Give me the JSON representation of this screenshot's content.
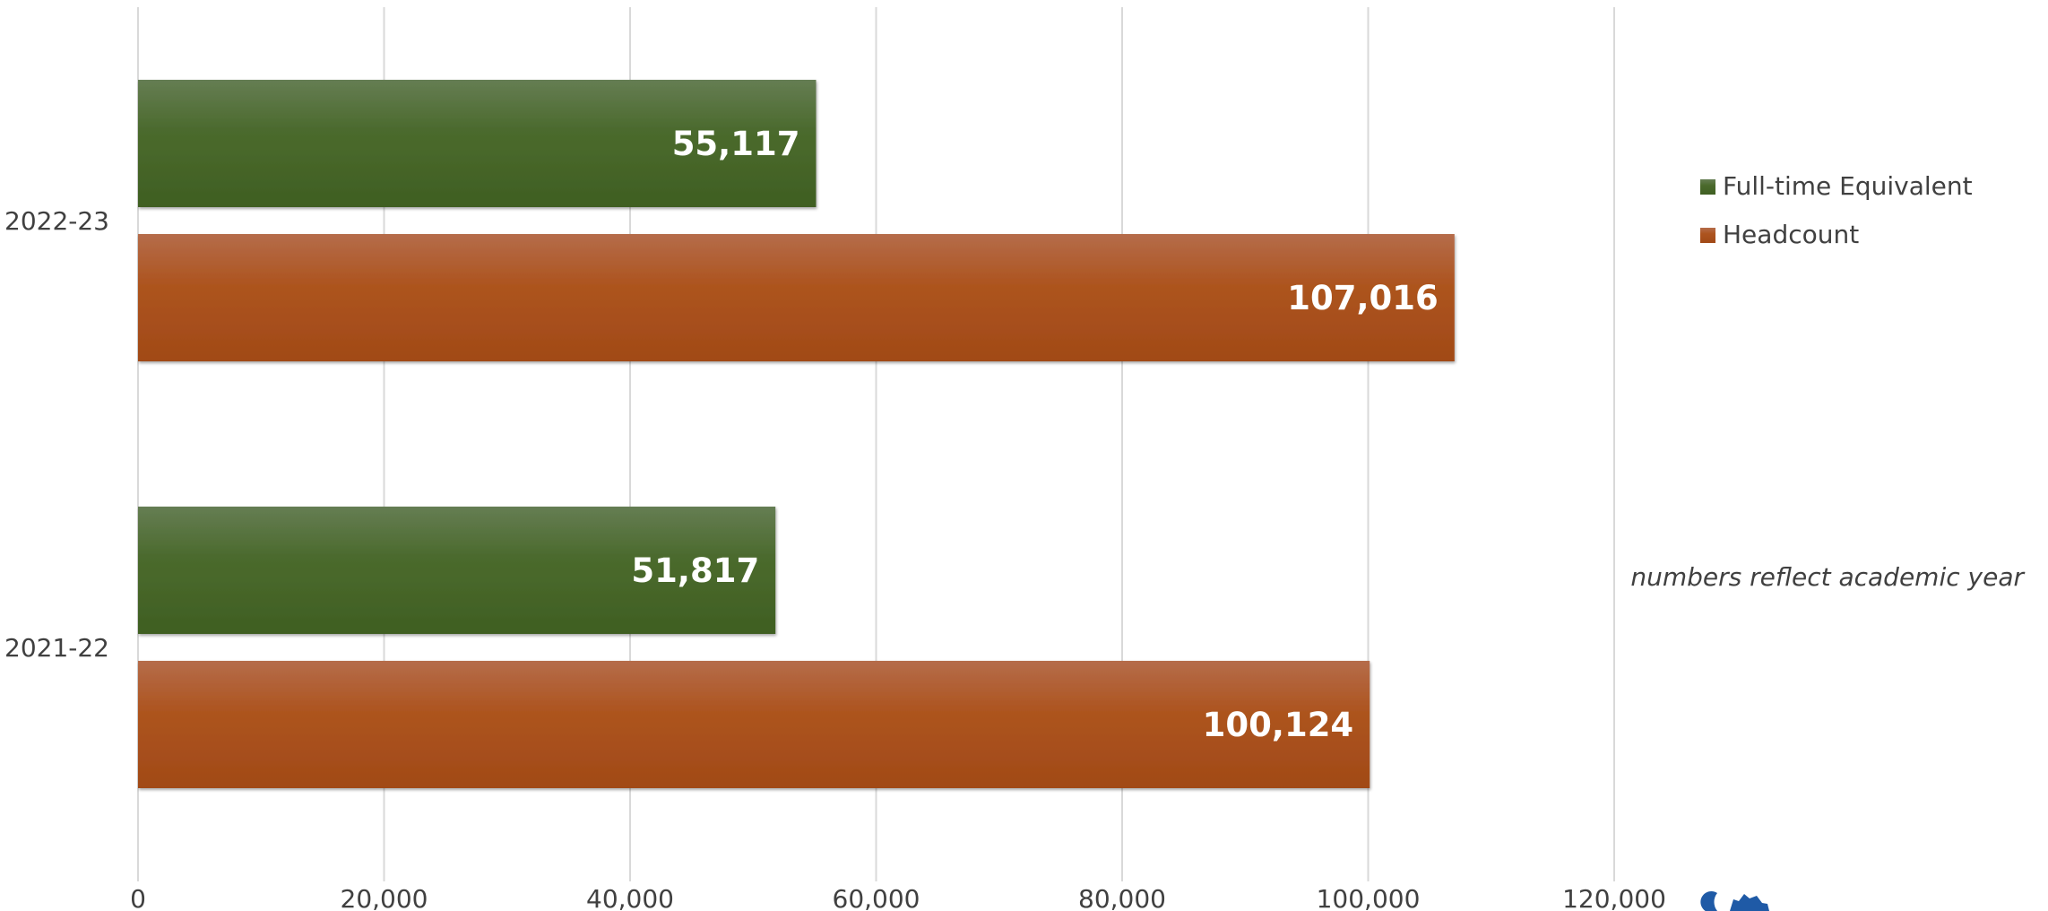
{
  "chart_data": {
    "type": "bar",
    "orientation": "horizontal",
    "categories": [
      "2022-23",
      "2021-22"
    ],
    "series": [
      {
        "name": "Full-time Equivalent",
        "values": [
          55117,
          51817
        ],
        "labels": [
          "55,117",
          "51,817"
        ],
        "color": "#4a6b2f"
      },
      {
        "name": "Headcount",
        "values": [
          107016,
          100124
        ],
        "labels": [
          "107,016",
          "100,124"
        ],
        "color": "#b0561f"
      }
    ],
    "xlim": [
      0,
      120000
    ],
    "xticks": [
      0,
      20000,
      40000,
      60000,
      80000,
      100000,
      120000
    ],
    "xtick_labels": [
      "0",
      "20,000",
      "40,000",
      "60,000",
      "80,000",
      "100,000",
      "120,000"
    ],
    "grid": "vertical",
    "legend_position": "right",
    "annotation": "numbers reflect academic year"
  }
}
